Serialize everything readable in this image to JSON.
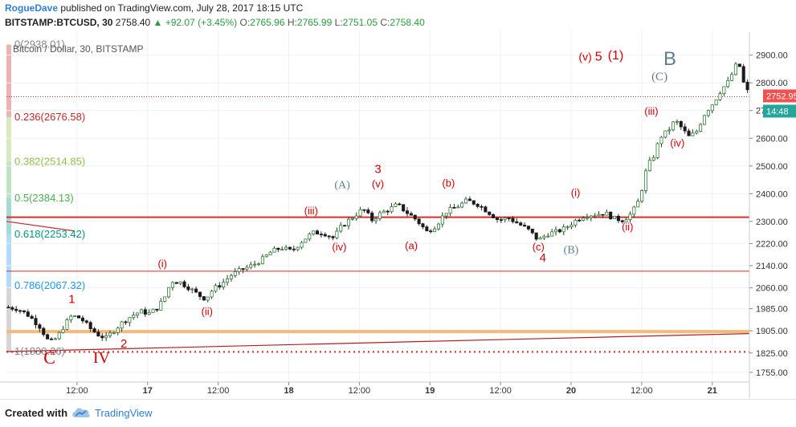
{
  "header": {
    "author": "RogueDave",
    "published": "published on TradingView.com, July 28, 2017 18:15 UTC",
    "symbol": "BITSTAMP:BTCUSD, 30",
    "last": "2758.40",
    "change": "▲ +92.07 (+3.45%)",
    "o_label": "O:",
    "o_value": "2765.96",
    "h_label": "H:",
    "h_value": "2765.99",
    "l_label": "L:",
    "l_value": "2751.05",
    "c_label": "C:",
    "c_value": "2758.40"
  },
  "footer": {
    "created": "Created with",
    "brand": "TradingView"
  },
  "chart_data": {
    "type": "candlestick",
    "title": "Bitcoin / Dollar, 30, BITSTAMP",
    "ylim": [
      1720,
      2960
    ],
    "y_ticks": [
      2900,
      2800,
      2700,
      2600,
      2500,
      2400,
      2300,
      2220,
      2140,
      2060,
      1985,
      1905,
      1825,
      1755
    ],
    "y_tick_labels": [
      "2900.00",
      "2800.00",
      "2700.00",
      "2600.00",
      "2500.00",
      "2400.00",
      "2300.00",
      "2220.00",
      "2140.00",
      "2060.00",
      "1985.00",
      "1905.00",
      "1825.00",
      "1755.00"
    ],
    "x_ticks": [
      {
        "t": 0.095,
        "label": "12:00"
      },
      {
        "t": 0.19,
        "label": "17"
      },
      {
        "t": 0.285,
        "label": "12:00"
      },
      {
        "t": 0.38,
        "label": "18"
      },
      {
        "t": 0.475,
        "label": "12:00"
      },
      {
        "t": 0.57,
        "label": "19"
      },
      {
        "t": 0.665,
        "label": "12:00"
      },
      {
        "t": 0.76,
        "label": "20"
      },
      {
        "t": 0.855,
        "label": "12:00"
      },
      {
        "t": 0.95,
        "label": "21"
      }
    ],
    "price_tags": [
      {
        "value": 2752.95,
        "label": "2752.95",
        "color": "#ef5350"
      },
      {
        "value": 2727,
        "label": "14:48",
        "color": "#26a69a"
      },
      {
        "value": 2700,
        "label": "27",
        "color": "#ffffff"
      }
    ],
    "anchors": [
      [
        0.0,
        1990
      ],
      [
        0.015,
        1985
      ],
      [
        0.03,
        1960
      ],
      [
        0.045,
        1920
      ],
      [
        0.058,
        1860
      ],
      [
        0.068,
        1880
      ],
      [
        0.078,
        1925
      ],
      [
        0.088,
        1960
      ],
      [
        0.1,
        1950
      ],
      [
        0.112,
        1915
      ],
      [
        0.124,
        1890
      ],
      [
        0.134,
        1878
      ],
      [
        0.144,
        1905
      ],
      [
        0.156,
        1935
      ],
      [
        0.168,
        1958
      ],
      [
        0.18,
        1975
      ],
      [
        0.192,
        1968
      ],
      [
        0.202,
        1985
      ],
      [
        0.212,
        2020
      ],
      [
        0.222,
        2085
      ],
      [
        0.234,
        2080
      ],
      [
        0.246,
        2060
      ],
      [
        0.258,
        2035
      ],
      [
        0.268,
        2020
      ],
      [
        0.278,
        2055
      ],
      [
        0.29,
        2075
      ],
      [
        0.302,
        2105
      ],
      [
        0.316,
        2125
      ],
      [
        0.33,
        2140
      ],
      [
        0.344,
        2162
      ],
      [
        0.356,
        2190
      ],
      [
        0.37,
        2205
      ],
      [
        0.384,
        2192
      ],
      [
        0.398,
        2230
      ],
      [
        0.412,
        2258
      ],
      [
        0.426,
        2260
      ],
      [
        0.44,
        2240
      ],
      [
        0.452,
        2285
      ],
      [
        0.466,
        2315
      ],
      [
        0.48,
        2345
      ],
      [
        0.492,
        2305
      ],
      [
        0.504,
        2330
      ],
      [
        0.516,
        2345
      ],
      [
        0.526,
        2360
      ],
      [
        0.54,
        2330
      ],
      [
        0.552,
        2305
      ],
      [
        0.566,
        2262
      ],
      [
        0.578,
        2285
      ],
      [
        0.592,
        2335
      ],
      [
        0.606,
        2352
      ],
      [
        0.62,
        2375
      ],
      [
        0.634,
        2362
      ],
      [
        0.648,
        2335
      ],
      [
        0.662,
        2305
      ],
      [
        0.676,
        2312
      ],
      [
        0.69,
        2290
      ],
      [
        0.702,
        2270
      ],
      [
        0.716,
        2232
      ],
      [
        0.728,
        2255
      ],
      [
        0.74,
        2262
      ],
      [
        0.752,
        2275
      ],
      [
        0.764,
        2300
      ],
      [
        0.778,
        2322
      ],
      [
        0.792,
        2325
      ],
      [
        0.806,
        2330
      ],
      [
        0.818,
        2310
      ],
      [
        0.83,
        2305
      ],
      [
        0.842,
        2330
      ],
      [
        0.852,
        2380
      ],
      [
        0.862,
        2495
      ],
      [
        0.872,
        2540
      ],
      [
        0.88,
        2605
      ],
      [
        0.89,
        2625
      ],
      [
        0.9,
        2665
      ],
      [
        0.908,
        2640
      ],
      [
        0.918,
        2605
      ],
      [
        0.928,
        2620
      ],
      [
        0.94,
        2690
      ],
      [
        0.952,
        2730
      ],
      [
        0.962,
        2775
      ],
      [
        0.972,
        2805
      ],
      [
        0.978,
        2840
      ],
      [
        0.985,
        2880
      ],
      [
        0.993,
        2790
      ],
      [
        1.0,
        2758
      ]
    ],
    "levels": [
      {
        "value": 2315,
        "color": "#d32f2f",
        "width": 2,
        "dash": ""
      },
      {
        "value": 2120,
        "color": "#d32f2f",
        "width": 1,
        "dash": ""
      },
      {
        "value": 1902,
        "color": "#f5b97a",
        "width": 4,
        "dash": ""
      },
      {
        "value": 1829,
        "color": "#d32f2f",
        "width": 2,
        "dash": "2,4"
      },
      {
        "value": 2750,
        "color": "#c62828",
        "width": 1,
        "dash": "1,2"
      }
    ],
    "trendlines": [
      {
        "t0": 0.0,
        "v0": 1830,
        "t1": 1.0,
        "v1": 1895,
        "color": "#b71c1c"
      },
      {
        "t0": 0.0,
        "v0": 2300,
        "t1": 0.092,
        "v1": 2265,
        "color": "#c62828"
      }
    ],
    "fib_levels": [
      {
        "ratio": "0",
        "value": 2938.01,
        "label": "0(2938.01)",
        "color": "#888888"
      },
      {
        "ratio": "0.236",
        "value": 2676.58,
        "label": "0.236(2676.58)",
        "color": "#c62828"
      },
      {
        "ratio": "0.382",
        "value": 2514.85,
        "label": "0.382(2514.85)",
        "color": "#8bc34a"
      },
      {
        "ratio": "0.5",
        "value": 2384.13,
        "label": "0.5(2384.13)",
        "color": "#4caf50"
      },
      {
        "ratio": "0.618",
        "value": 2253.42,
        "label": "0.618(2253.42)",
        "color": "#009688"
      },
      {
        "ratio": "0.786",
        "value": 2067.32,
        "label": "0.786(2067.32)",
        "color": "#2196f3"
      },
      {
        "ratio": "1",
        "value": 1830.26,
        "label": "1(1830.26)",
        "color": "#888888"
      }
    ],
    "annotations": [
      {
        "text": "1",
        "t": 0.088,
        "v": 2005,
        "color": "#d50000",
        "size": 15,
        "serif": false
      },
      {
        "text": "2",
        "t": 0.158,
        "v": 1845,
        "color": "#d50000",
        "size": 15,
        "serif": false
      },
      {
        "text": "C",
        "t": 0.058,
        "v": 1787,
        "color": "#d50000",
        "size": 22,
        "serif": true
      },
      {
        "text": "IV",
        "t": 0.128,
        "v": 1790,
        "color": "#d50000",
        "size": 20,
        "serif": true
      },
      {
        "text": "(i)",
        "t": 0.21,
        "v": 2135,
        "color": "#d50000",
        "size": 13,
        "serif": false
      },
      {
        "text": "(ii)",
        "t": 0.27,
        "v": 1962,
        "color": "#d50000",
        "size": 13,
        "serif": false
      },
      {
        "text": "(iii)",
        "t": 0.41,
        "v": 2325,
        "color": "#d50000",
        "size": 13,
        "serif": false
      },
      {
        "text": "(iv)",
        "t": 0.448,
        "v": 2195,
        "color": "#d50000",
        "size": 13,
        "serif": false
      },
      {
        "text": "(A)",
        "t": 0.452,
        "v": 2420,
        "color": "#607d8b",
        "size": 14,
        "serif": true
      },
      {
        "text": "3",
        "t": 0.5,
        "v": 2475,
        "color": "#d50000",
        "size": 15,
        "serif": false
      },
      {
        "text": "(v)",
        "t": 0.5,
        "v": 2422,
        "color": "#d50000",
        "size": 13,
        "serif": false
      },
      {
        "text": "(a)",
        "t": 0.545,
        "v": 2200,
        "color": "#d50000",
        "size": 13,
        "serif": false
      },
      {
        "text": "(b)",
        "t": 0.595,
        "v": 2425,
        "color": "#d50000",
        "size": 13,
        "serif": false
      },
      {
        "text": "(c)",
        "t": 0.716,
        "v": 2195,
        "color": "#d50000",
        "size": 13,
        "serif": false
      },
      {
        "text": "4",
        "t": 0.722,
        "v": 2155,
        "color": "#d50000",
        "size": 15,
        "serif": false
      },
      {
        "text": "(B)",
        "t": 0.76,
        "v": 2185,
        "color": "#607d8b",
        "size": 14,
        "serif": true
      },
      {
        "text": "(i)",
        "t": 0.766,
        "v": 2390,
        "color": "#d50000",
        "size": 13,
        "serif": false
      },
      {
        "text": "(ii)",
        "t": 0.836,
        "v": 2268,
        "color": "#d50000",
        "size": 13,
        "serif": false
      },
      {
        "text": "(v)",
        "t": 0.779,
        "v": 2880,
        "color": "#d50000",
        "size": 14,
        "serif": false
      },
      {
        "text": "5",
        "t": 0.797,
        "v": 2880,
        "color": "#d50000",
        "size": 16,
        "serif": false
      },
      {
        "text": "(1)",
        "t": 0.82,
        "v": 2885,
        "color": "#d50000",
        "size": 16,
        "serif": false
      },
      {
        "text": "(iii)",
        "t": 0.868,
        "v": 2685,
        "color": "#d50000",
        "size": 13,
        "serif": false
      },
      {
        "text": "(iv)",
        "t": 0.903,
        "v": 2570,
        "color": "#d50000",
        "size": 13,
        "serif": false
      },
      {
        "text": "(C)",
        "t": 0.879,
        "v": 2810,
        "color": "#607d8b",
        "size": 15,
        "serif": true
      },
      {
        "text": "B",
        "t": 0.893,
        "v": 2865,
        "color": "#607d8b",
        "size": 24,
        "serif": false
      }
    ]
  }
}
